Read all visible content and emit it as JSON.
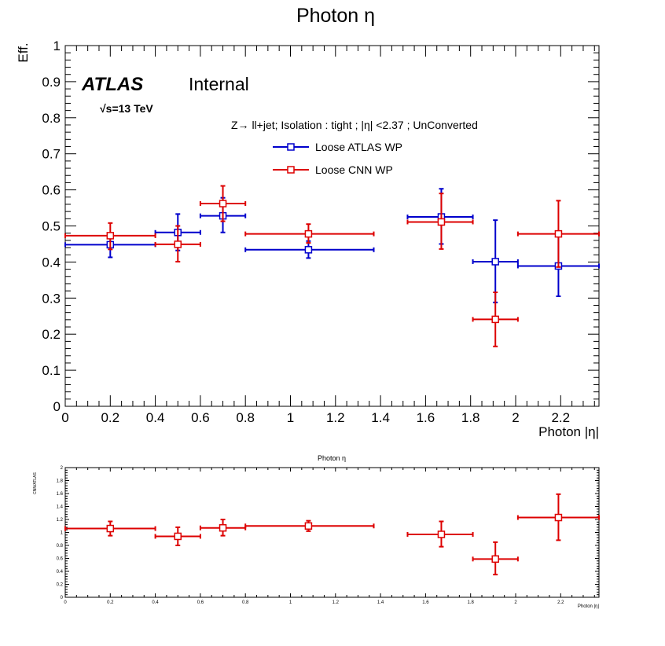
{
  "top_panel": {
    "title": "Photon η",
    "xlabel": "Photon |η|",
    "ylabel": "Eff.",
    "atlas_label": "ATLAS",
    "internal_label": "Internal",
    "energy_label": "√s=13 TeV",
    "selection_text": "Z→ ll+jet; Isolation : tight ; |η| <2.37 ; UnConverted",
    "x_ticks": [
      "0",
      "0.2",
      "0.4",
      "0.6",
      "0.8",
      "1",
      "1.2",
      "1.4",
      "1.6",
      "1.8",
      "2",
      "2.2"
    ],
    "y_ticks": [
      "0",
      "0.1",
      "0.2",
      "0.3",
      "0.4",
      "0.5",
      "0.6",
      "0.7",
      "0.8",
      "0.9",
      "1"
    ]
  },
  "bottom_panel": {
    "title": "Photon η",
    "xlabel": "Photon |η|",
    "ylabel": "CNN/ATLAS",
    "x_ticks": [
      "0",
      "0.2",
      "0.4",
      "0.6",
      "0.8",
      "1",
      "1.2",
      "1.4",
      "1.6",
      "1.8",
      "2",
      "2.2"
    ],
    "y_ticks": [
      "0",
      "0.2",
      "0.4",
      "0.6",
      "0.8",
      "1",
      "1.2",
      "1.4",
      "1.6",
      "1.8",
      "2"
    ]
  },
  "colors": {
    "atlas": "#0000cc",
    "cnn": "#dd0000",
    "axis": "#000000"
  },
  "chart_data": [
    {
      "type": "scatter",
      "title": "Photon η",
      "xlabel": "Photon |η|",
      "ylabel": "Eff.",
      "xlim": [
        0,
        2.37
      ],
      "ylim": [
        0,
        1
      ],
      "legend_position": "top-center",
      "series": [
        {
          "name": "Loose ATLAS WP",
          "color": "#0000cc",
          "points": [
            {
              "x": 0.2,
              "xlo": 0.0,
              "xhi": 0.4,
              "y": 0.448,
              "ylo": 0.413,
              "yhi": 0.48
            },
            {
              "x": 0.5,
              "xlo": 0.4,
              "xhi": 0.6,
              "y": 0.482,
              "ylo": 0.432,
              "yhi": 0.533
            },
            {
              "x": 0.7,
              "xlo": 0.6,
              "xhi": 0.8,
              "y": 0.528,
              "ylo": 0.482,
              "yhi": 0.578
            },
            {
              "x": 1.08,
              "xlo": 0.8,
              "xhi": 1.37,
              "y": 0.434,
              "ylo": 0.411,
              "yhi": 0.458
            },
            {
              "x": 1.67,
              "xlo": 1.52,
              "xhi": 1.81,
              "y": 0.525,
              "ylo": 0.45,
              "yhi": 0.603
            },
            {
              "x": 1.91,
              "xlo": 1.81,
              "xhi": 2.01,
              "y": 0.401,
              "ylo": 0.288,
              "yhi": 0.516
            },
            {
              "x": 2.19,
              "xlo": 2.01,
              "xhi": 2.37,
              "y": 0.389,
              "ylo": 0.305,
              "yhi": 0.472
            }
          ]
        },
        {
          "name": "Loose CNN WP",
          "color": "#dd0000",
          "points": [
            {
              "x": 0.2,
              "xlo": 0.0,
              "xhi": 0.4,
              "y": 0.473,
              "ylo": 0.435,
              "yhi": 0.508
            },
            {
              "x": 0.5,
              "xlo": 0.4,
              "xhi": 0.6,
              "y": 0.449,
              "ylo": 0.401,
              "yhi": 0.5
            },
            {
              "x": 0.7,
              "xlo": 0.6,
              "xhi": 0.8,
              "y": 0.562,
              "ylo": 0.513,
              "yhi": 0.611
            },
            {
              "x": 1.08,
              "xlo": 0.8,
              "xhi": 1.37,
              "y": 0.478,
              "ylo": 0.453,
              "yhi": 0.505
            },
            {
              "x": 1.67,
              "xlo": 1.52,
              "xhi": 1.81,
              "y": 0.511,
              "ylo": 0.436,
              "yhi": 0.59
            },
            {
              "x": 1.91,
              "xlo": 1.81,
              "xhi": 2.01,
              "y": 0.241,
              "ylo": 0.166,
              "yhi": 0.316
            },
            {
              "x": 2.19,
              "xlo": 2.01,
              "xhi": 2.37,
              "y": 0.478,
              "ylo": 0.386,
              "yhi": 0.57
            }
          ]
        }
      ]
    },
    {
      "type": "scatter",
      "title": "Photon η",
      "xlabel": "Photon |η|",
      "ylabel": "CNN/ATLAS",
      "xlim": [
        0,
        2.37
      ],
      "ylim": [
        0,
        2
      ],
      "series": [
        {
          "color": "#dd0000",
          "points": [
            {
              "x": 0.2,
              "xlo": 0.0,
              "xhi": 0.4,
              "y": 1.06,
              "ylo": 0.95,
              "yhi": 1.17
            },
            {
              "x": 0.5,
              "xlo": 0.4,
              "xhi": 0.6,
              "y": 0.94,
              "ylo": 0.8,
              "yhi": 1.08
            },
            {
              "x": 0.7,
              "xlo": 0.6,
              "xhi": 0.8,
              "y": 1.07,
              "ylo": 0.95,
              "yhi": 1.2
            },
            {
              "x": 1.08,
              "xlo": 0.8,
              "xhi": 1.37,
              "y": 1.1,
              "ylo": 1.02,
              "yhi": 1.18
            },
            {
              "x": 1.67,
              "xlo": 1.52,
              "xhi": 1.81,
              "y": 0.97,
              "ylo": 0.78,
              "yhi": 1.17
            },
            {
              "x": 1.91,
              "xlo": 1.81,
              "xhi": 2.01,
              "y": 0.59,
              "ylo": 0.35,
              "yhi": 0.85
            },
            {
              "x": 2.19,
              "xlo": 2.01,
              "xhi": 2.37,
              "y": 1.23,
              "ylo": 0.88,
              "yhi": 1.59
            }
          ]
        }
      ]
    }
  ]
}
